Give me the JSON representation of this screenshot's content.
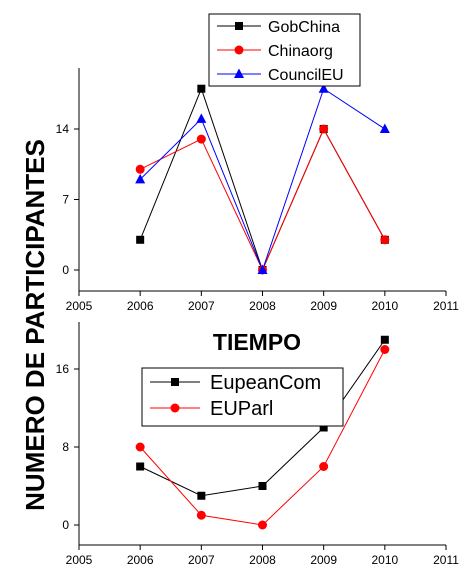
{
  "ylabel": "NUMERO DE PARTICIPANTES",
  "chart_data": [
    {
      "type": "line",
      "x": [
        2006,
        2007,
        2008,
        2009,
        2010
      ],
      "xlim": [
        2005,
        2011
      ],
      "ylim": [
        -2,
        20
      ],
      "xticks": [
        "2005",
        "2006",
        "2007",
        "2008",
        "2009",
        "2010",
        "2011"
      ],
      "yticks": [
        "0",
        "7",
        "14"
      ],
      "xlabel": "TIEMPO",
      "legend_position": "top",
      "series": [
        {
          "name": "GobChina",
          "values": [
            3,
            18,
            0,
            14,
            3
          ],
          "color": "#000000",
          "marker": "square"
        },
        {
          "name": "Chinaorg",
          "values": [
            10,
            13,
            0,
            14,
            3
          ],
          "color": "#ff0000",
          "marker": "circle"
        },
        {
          "name": "CouncilEU",
          "values": [
            9,
            15,
            0,
            18,
            14
          ],
          "color": "#0000ff",
          "marker": "triangle"
        }
      ]
    },
    {
      "type": "line",
      "x": [
        2006,
        2007,
        2008,
        2009,
        2010
      ],
      "xlim": [
        2005,
        2011
      ],
      "ylim": [
        -2,
        20
      ],
      "xticks": [
        "2005",
        "2006",
        "2007",
        "2008",
        "2009",
        "2010",
        "2011"
      ],
      "yticks": [
        "0",
        "8",
        "16"
      ],
      "xlabel": "",
      "legend_position": "top",
      "series": [
        {
          "name": "EupeanCom",
          "values": [
            6,
            3,
            4,
            10,
            19
          ],
          "color": "#000000",
          "marker": "square"
        },
        {
          "name": "EUParl",
          "values": [
            8,
            1,
            0,
            6,
            18
          ],
          "color": "#ff0000",
          "marker": "circle"
        }
      ]
    }
  ]
}
